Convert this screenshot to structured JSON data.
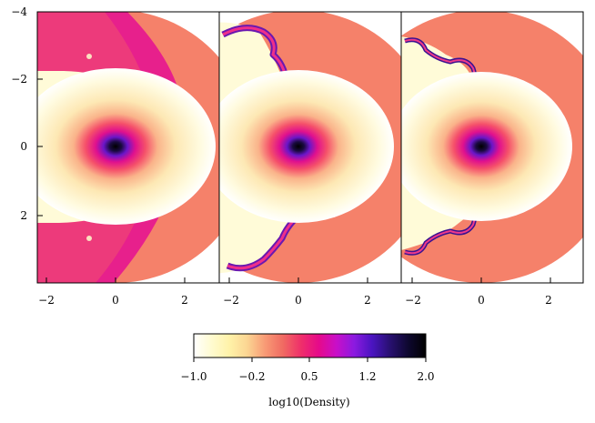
{
  "y_ticks": [
    "−4",
    "−2",
    "0",
    "2"
  ],
  "panels": [
    {
      "x_ticks": [
        "−2",
        "0",
        "2"
      ]
    },
    {
      "x_ticks": [
        "−2",
        "0",
        "2"
      ]
    },
    {
      "x_ticks": [
        "−2",
        "0",
        "2"
      ]
    }
  ],
  "colorbar": {
    "tick_labels": [
      "−1.0",
      "−0.2",
      "0.5",
      "1.2",
      "2.0"
    ],
    "label": "log10(Density)",
    "range": [
      -1.0,
      2.0
    ],
    "stops": [
      "#ffffff",
      "#fffbd0",
      "#fff2a8",
      "#fbd592",
      "#f89a75",
      "#f06a62",
      "#ef2f6a",
      "#e60a8a",
      "#c80fc8",
      "#8b1ae0",
      "#4a14c0",
      "#281070",
      "#0e0830",
      "#000000"
    ]
  },
  "colors": {
    "ambient": "#f5816a",
    "inner_bubble": "#fffbd8",
    "shell": "#e7208c",
    "core": "#000000"
  }
}
